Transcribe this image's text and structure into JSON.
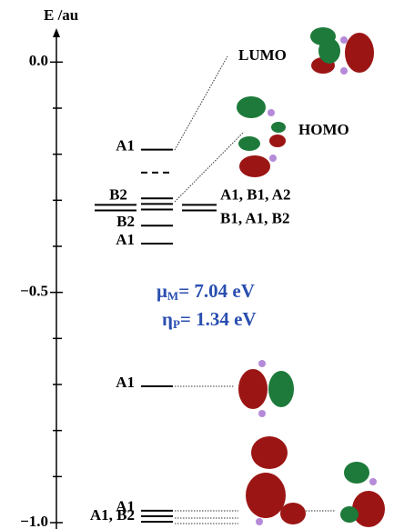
{
  "axis": {
    "label": "E /au",
    "ylim": [
      -1.0,
      0.05
    ],
    "yticks": [
      {
        "value": 0,
        "label": "0.0"
      },
      {
        "value": -0.5,
        "label": "−0.5"
      },
      {
        "value": -1.0,
        "label": "−1.0"
      }
    ],
    "minor_ticks": [
      -0.1,
      -0.2,
      -0.3,
      -0.4,
      -0.6,
      -0.7,
      -0.8,
      -0.9
    ]
  },
  "levels": [
    {
      "label": "A1",
      "energies": [
        -0.19
      ]
    },
    {
      "energies": [
        -0.24
      ],
      "dashed": true
    },
    {
      "label": "B2",
      "energies": [
        -0.355
      ]
    },
    {
      "label": "A1",
      "energies": [
        -0.394
      ]
    },
    {
      "label": "A1",
      "energies": [
        -0.704
      ]
    },
    {
      "label": "A1",
      "energies": [
        -0.974
      ]
    },
    {
      "label": "A1, B2",
      "energies": [
        -0.986,
        -0.998
      ]
    }
  ],
  "cluster": {
    "label": "B2",
    "left": [
      -0.31,
      -0.322
    ],
    "middle": [
      -0.296,
      -0.308,
      -0.32
    ],
    "right": [
      -0.31,
      -0.322
    ],
    "right_labels": [
      "A1, B1, A2",
      "B1, A1, B2"
    ]
  },
  "annotations": {
    "lumo": "LUMO",
    "homo": "HOMO",
    "mu": {
      "symbol": "μ",
      "subscript": "M",
      "text": "= 7.04 eV"
    },
    "eta": {
      "symbol": "η",
      "subscript": "P",
      "text": "= 1.34 eV"
    }
  }
}
